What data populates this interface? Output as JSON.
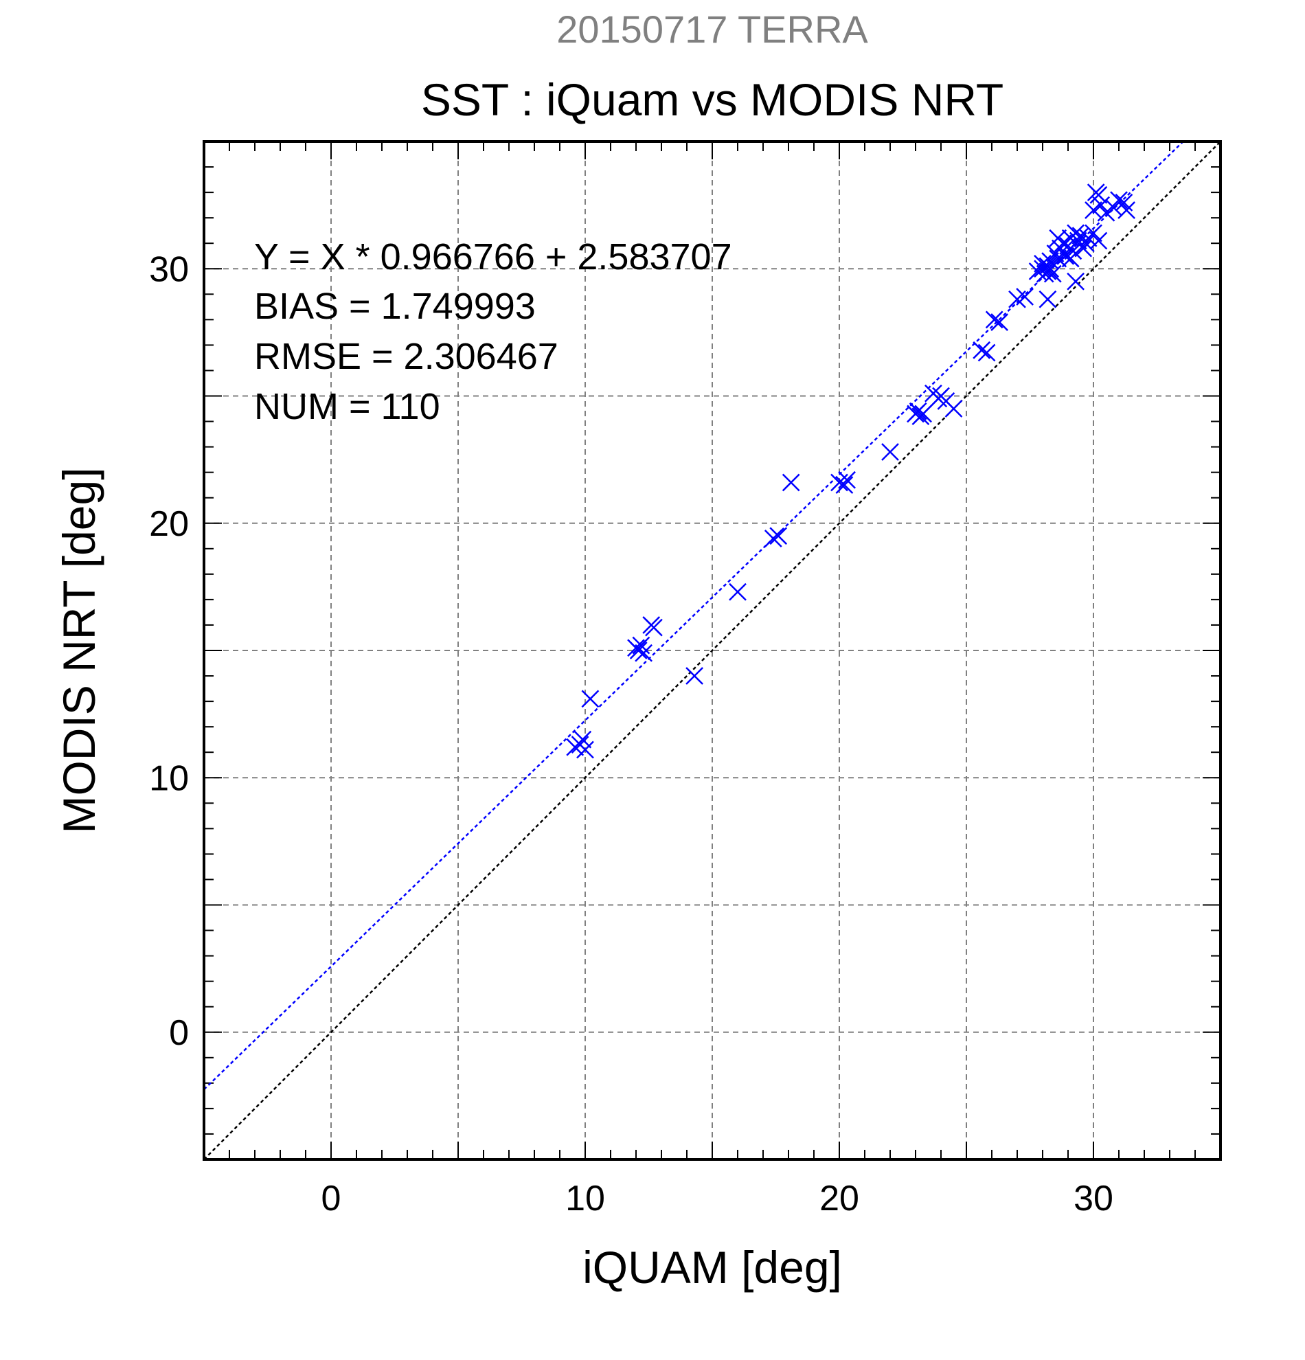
{
  "chart_data": {
    "type": "scatter",
    "supertitle": "20150717 TERRA",
    "title": "SST : iQuam vs MODIS NRT",
    "xlabel": "iQUAM [deg]",
    "ylabel": "MODIS NRT [deg]",
    "xlim": [
      -5,
      35
    ],
    "ylim": [
      -5,
      35
    ],
    "xticks": [
      "0",
      "10",
      "20",
      "30"
    ],
    "yticks": [
      "0",
      "10",
      "20",
      "30"
    ],
    "grid": true,
    "stats": [
      "Y = X * 0.966766 + 2.583707",
      "BIAS = 1.749993",
      "RMSE = 2.306467",
      "NUM = 110"
    ],
    "fit": {
      "slope": 0.966766,
      "intercept": 2.583707
    },
    "identity": {
      "slope": 1,
      "intercept": 0
    },
    "colors": {
      "points": "#0000ff",
      "fit_line": "#0000ff",
      "identity_line": "#000000",
      "supertitle": "#808080",
      "grid": "#808080"
    },
    "x": [
      9.6,
      9.8,
      9.9,
      10.0,
      10.2,
      12.0,
      12.1,
      12.2,
      12.3,
      12.6,
      12.7,
      14.3,
      16.0,
      17.4,
      17.6,
      18.1,
      20.0,
      20.2,
      20.3,
      22.0,
      23.0,
      23.1,
      23.2,
      23.3,
      23.7,
      23.9,
      24.0,
      24.2,
      24.5,
      25.6,
      25.8,
      26.1,
      26.3,
      27.0,
      27.3,
      27.8,
      28.0,
      28.0,
      28.1,
      28.2,
      28.2,
      28.3,
      28.3,
      28.4,
      28.5,
      28.6,
      28.7,
      28.8,
      28.9,
      29.0,
      29.1,
      29.2,
      29.3,
      29.4,
      29.5,
      29.7,
      29.8,
      30.0,
      30.1,
      30.2,
      30.3,
      30.5,
      30.8,
      31.0,
      31.2,
      31.3,
      28.2,
      29.3,
      28.6,
      28.9,
      29.1,
      29.6,
      30.0,
      30.2
    ],
    "y": [
      11.2,
      11.3,
      11.5,
      11.1,
      13.1,
      15.1,
      15.0,
      15.2,
      14.9,
      16.0,
      15.9,
      14.0,
      17.3,
      19.4,
      19.5,
      21.6,
      21.6,
      21.5,
      21.7,
      22.8,
      24.3,
      24.4,
      24.2,
      24.3,
      25.1,
      24.9,
      25.0,
      24.8,
      24.5,
      26.8,
      26.7,
      28.0,
      27.9,
      28.8,
      28.9,
      29.9,
      30.2,
      30.0,
      29.8,
      30.1,
      29.9,
      30.3,
      30.0,
      29.8,
      30.6,
      30.4,
      30.8,
      31.0,
      30.5,
      30.9,
      31.2,
      30.7,
      31.4,
      31.1,
      31.3,
      31.0,
      31.2,
      32.3,
      33.0,
      32.9,
      32.5,
      32.2,
      32.4,
      32.7,
      32.6,
      32.3,
      28.8,
      29.5,
      31.2,
      30.6,
      30.4,
      30.8,
      31.4,
      31.1
    ]
  }
}
